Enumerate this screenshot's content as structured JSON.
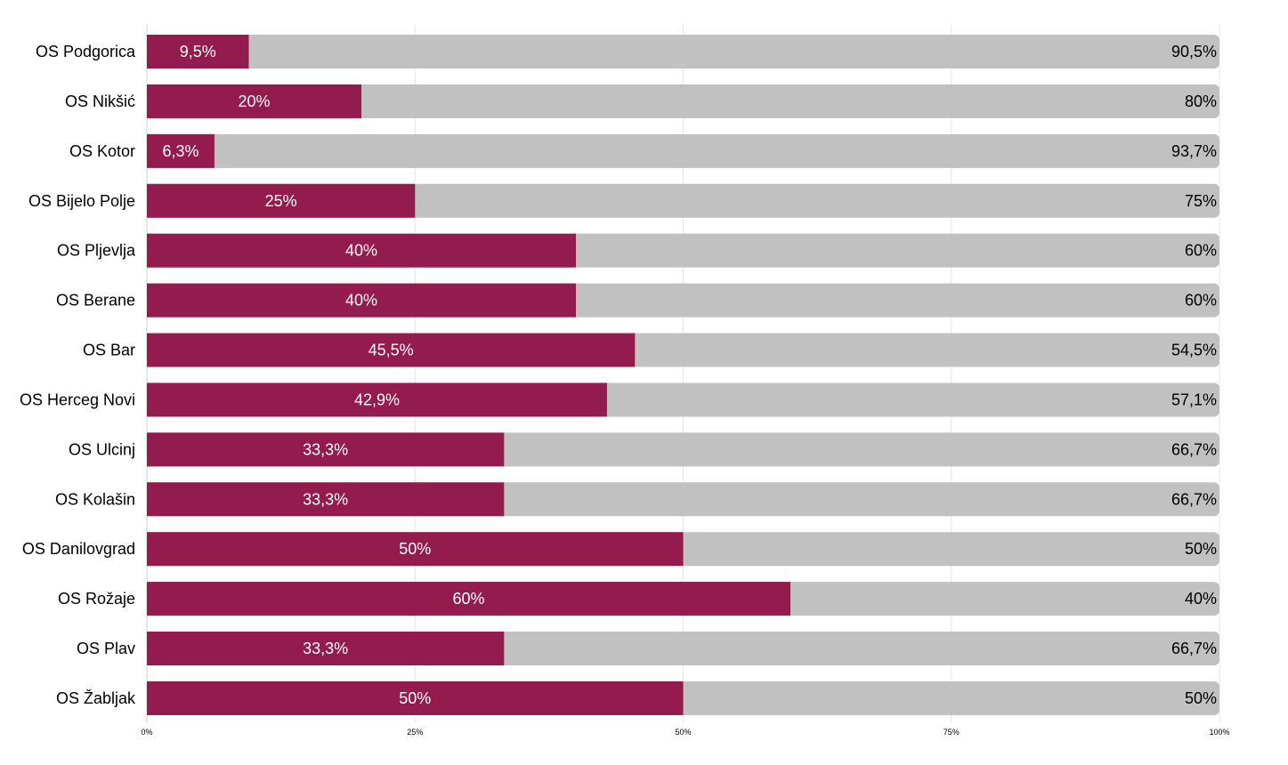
{
  "chart_data": {
    "type": "bar",
    "orientation": "horizontal",
    "stacked": true,
    "categories": [
      "OS Podgorica",
      "OS Nikšić",
      "OS Kotor",
      "OS Bijelo Polje",
      "OS Pljevlja",
      "OS Berane",
      "OS Bar",
      "OS Herceg Novi",
      "OS Ulcinj",
      "OS Kolašin",
      "OS Danilovgrad",
      "OS Rožaje",
      "OS Plav",
      "OS Žabljak"
    ],
    "series": [
      {
        "color": "#931B4E",
        "values": [
          9.5,
          20,
          6.3,
          25,
          40,
          40,
          45.5,
          42.9,
          33.3,
          33.3,
          50,
          60,
          33.3,
          50
        ],
        "labels": [
          "9,5%",
          "20%",
          "6,3%",
          "25%",
          "40%",
          "40%",
          "45,5%",
          "42,9%",
          "33,3%",
          "33,3%",
          "50%",
          "60%",
          "33,3%",
          "50%"
        ]
      },
      {
        "color": "#C1C1C1",
        "values": [
          90.5,
          80,
          93.7,
          75,
          60,
          60,
          54.5,
          57.1,
          66.7,
          66.7,
          50,
          40,
          66.7,
          50
        ],
        "labels": [
          "90,5%",
          "80%",
          "93,7%",
          "75%",
          "60%",
          "60%",
          "54,5%",
          "57,1%",
          "66,7%",
          "66,7%",
          "50%",
          "40%",
          "66,7%",
          "50%"
        ]
      }
    ],
    "x_ticks": [
      "0%",
      "25%",
      "50%",
      "75%",
      "100%"
    ],
    "xlim": [
      0,
      100
    ],
    "grid": true,
    "legend": "none",
    "title": "",
    "xlabel": "",
    "ylabel": ""
  }
}
